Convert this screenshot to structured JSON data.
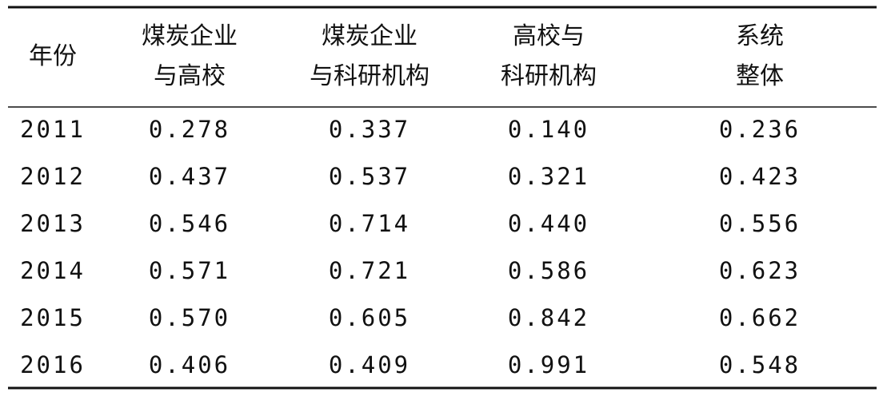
{
  "table": {
    "header": [
      [
        "年份"
      ],
      [
        "煤炭企业",
        "与高校"
      ],
      [
        "煤炭企业",
        "与科研机构"
      ],
      [
        "高校与",
        "科研机构"
      ],
      [
        "系统",
        "整体"
      ]
    ],
    "rows": [
      [
        "2011",
        "0.278",
        "0.337",
        "0.140",
        "0.236"
      ],
      [
        "2012",
        "0.437",
        "0.537",
        "0.321",
        "0.423"
      ],
      [
        "2013",
        "0.546",
        "0.714",
        "0.440",
        "0.556"
      ],
      [
        "2014",
        "0.571",
        "0.721",
        "0.586",
        "0.623"
      ],
      [
        "2015",
        "0.570",
        "0.605",
        "0.842",
        "0.662"
      ],
      [
        "2016",
        "0.406",
        "0.409",
        "0.991",
        "0.548"
      ]
    ]
  }
}
